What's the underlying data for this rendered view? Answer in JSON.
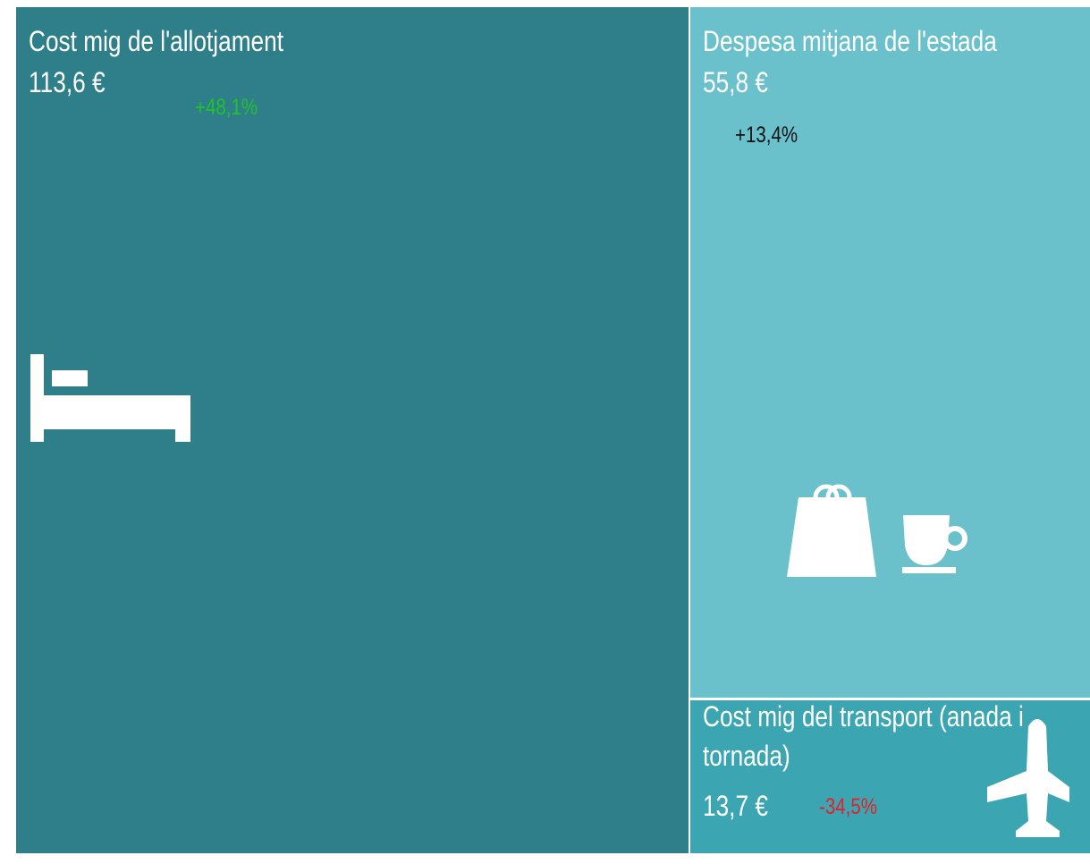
{
  "tiles": [
    {
      "label": "Cost mig de l'allotjament",
      "value": "113,6 €",
      "change": "+48,1%"
    },
    {
      "label": "Despesa mitjana de l'estada",
      "value": "55,8 €",
      "change": "+13,4%"
    },
    {
      "label": "Cost mig del transport (anada i tornada)",
      "value": "13,7 €",
      "change": "-34,5%"
    }
  ]
}
